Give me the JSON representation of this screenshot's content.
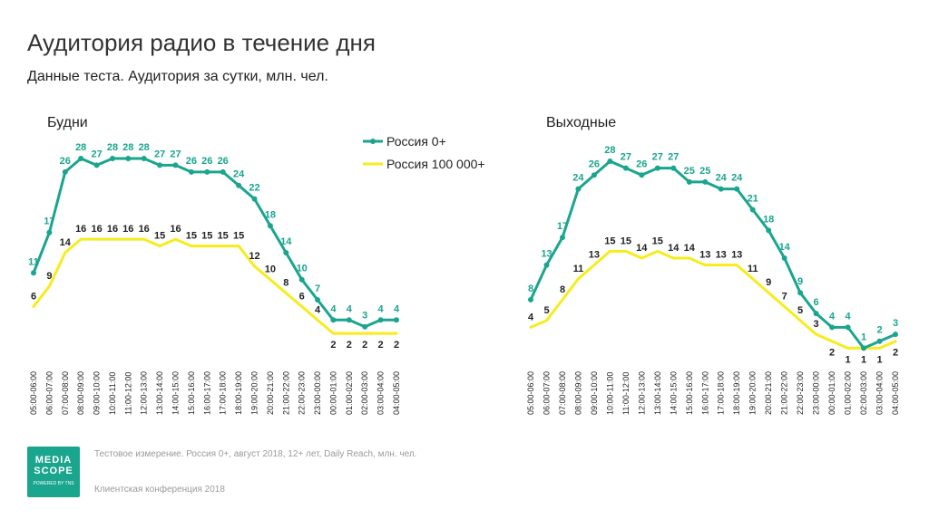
{
  "page": {
    "title": "Аудитория радио в течение дня",
    "subtitle": "Данные теста. Аудитория за сутки, млн. чел."
  },
  "footer": {
    "note": "Тестовое измерение. Россия 0+, август 2018, 12+ лет, Daily Reach, млн. чел.",
    "conference": "Клиентская конференция 2018",
    "logo_line1": "MEDIA",
    "logo_line2": "SCOPE",
    "logo_tagline": "POWERED BY TNS"
  },
  "colors": {
    "russia0": "#1aa58e",
    "russia100k": "#f7ec1c",
    "russia0_label": "#1aa58e",
    "russia100k_label": "#222222"
  },
  "chart_data": [
    {
      "type": "line",
      "title": "Будни",
      "categories": [
        "05:00-06:00",
        "06:00-07:00",
        "07:00-08:00",
        "08:00-09:00",
        "09:00-10:00",
        "10:00-11:00",
        "11:00-12:00",
        "12:00-13:00",
        "13:00-14:00",
        "14:00-15:00",
        "15:00-16:00",
        "16:00-17:00",
        "17:00-18:00",
        "18:00-19:00",
        "19:00-20:00",
        "20:00-21:00",
        "21:00-22:00",
        "22:00-23:00",
        "23:00-00:00",
        "00:00-01:00",
        "01:00-02:00",
        "02:00-03:00",
        "03:00-04:00",
        "04:00-05:00"
      ],
      "legend": "top-right",
      "series": [
        {
          "name": "Россия 0+",
          "values": [
            11,
            17,
            26,
            28,
            27,
            28,
            28,
            28,
            27,
            27,
            26,
            26,
            26,
            24,
            22,
            18,
            14,
            10,
            7,
            4,
            4,
            3,
            4,
            4
          ],
          "labels": [
            "11",
            "17",
            "26",
            "28",
            "27",
            "28",
            "28",
            "28",
            "27",
            "27",
            "26",
            "26",
            "26",
            "24",
            "22",
            "18",
            "14",
            "10",
            "7",
            "4",
            "4",
            "3",
            "4",
            "4"
          ]
        },
        {
          "name": "Россия 100 000+",
          "values": [
            6,
            9,
            14,
            16,
            16,
            16,
            16,
            16,
            15,
            16,
            15,
            15,
            15,
            15,
            12,
            10,
            8,
            6,
            4,
            2,
            2,
            2,
            2,
            2
          ],
          "labels": [
            "6",
            "9",
            "14",
            "16",
            "16",
            "16",
            "16",
            "16",
            "15",
            "16",
            "15",
            "15",
            "15",
            "15",
            "12",
            "10",
            "8",
            "6",
            "4",
            "2",
            "2",
            "2",
            "2",
            "2"
          ]
        }
      ]
    },
    {
      "type": "line",
      "title": "Выходные",
      "categories": [
        "05:00-06:00",
        "06:00-07:00",
        "07:00-08:00",
        "08:00-09:00",
        "09:00-10:00",
        "10:00-11:00",
        "11:00-12:00",
        "12:00-13:00",
        "13:00-14:00",
        "14:00-15:00",
        "15:00-16:00",
        "16:00-17:00",
        "17:00-18:00",
        "18:00-19:00",
        "19:00-20:00",
        "20:00-21:00",
        "21:00-22:00",
        "22:00-23:00",
        "23:00-00:00",
        "00:00-01:00",
        "01:00-02:00",
        "02:00-03:00",
        "03:00-04:00",
        "04:00-05:00"
      ],
      "series": [
        {
          "name": "Россия 0+",
          "values": [
            8,
            13,
            17,
            24,
            26,
            28,
            27,
            26,
            27,
            27,
            25,
            25,
            24,
            24,
            21,
            18,
            14,
            9,
            6,
            4,
            4,
            1,
            2,
            3
          ],
          "labels": [
            "8",
            "13",
            "17",
            "24",
            "26",
            "28",
            "27",
            "26",
            "27",
            "27",
            "25",
            "25",
            "24",
            "24",
            "21",
            "18",
            "14",
            "9",
            "6",
            "4",
            "4",
            "1",
            "2",
            "3"
          ]
        },
        {
          "name": "Россия 100 000+",
          "values": [
            4,
            5,
            8,
            11,
            13,
            15,
            15,
            14,
            15,
            14,
            14,
            13,
            13,
            13,
            11,
            9,
            7,
            5,
            3,
            2,
            1,
            1,
            1,
            2
          ],
          "labels": [
            "4",
            "5",
            "8",
            "11",
            "13",
            "15",
            "15",
            "14",
            "15",
            "14",
            "14",
            "13",
            "13",
            "13",
            "11",
            "9",
            "7",
            "5",
            "3",
            "2",
            "1",
            "1",
            "1",
            "2"
          ]
        }
      ]
    }
  ]
}
